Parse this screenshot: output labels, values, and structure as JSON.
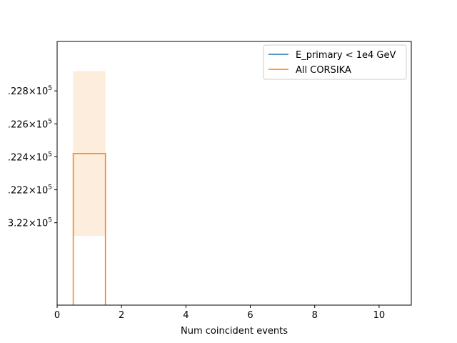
{
  "chart_data": {
    "type": "histogram",
    "xlabel": "Num coincident events",
    "ylabel": "",
    "xlim": [
      0,
      11
    ],
    "ylim": [
      322150,
      322310
    ],
    "yscale": "log",
    "grid": false,
    "legend_position": "top-right",
    "x_ticks": [
      {
        "value": 0,
        "label": "0"
      },
      {
        "value": 2,
        "label": "2"
      },
      {
        "value": 4,
        "label": "4"
      },
      {
        "value": 6,
        "label": "6"
      },
      {
        "value": 8,
        "label": "8"
      },
      {
        "value": 10,
        "label": "10"
      }
    ],
    "y_ticks": [
      {
        "value": 322200,
        "mantissa": "3.22",
        "partial": false
      },
      {
        "value": 322220,
        "mantissa": ".222",
        "partial": true
      },
      {
        "value": 322240,
        "mantissa": ".224",
        "partial": true
      },
      {
        "value": 322260,
        "mantissa": ".226",
        "partial": true
      },
      {
        "value": 322280,
        "mantissa": ".228",
        "partial": true
      }
    ],
    "y_tick_suffix": {
      "base": "10",
      "exponent": "5",
      "times": "×"
    },
    "series": [
      {
        "name": "E_primary < 1e4 GeV",
        "color": "#1f77b4",
        "bins": []
      },
      {
        "name": "All CORSIKA",
        "color": "#ff7f0e",
        "band_color": "#fdebd9",
        "bins": [
          {
            "x_low": 0.5,
            "x_high": 1.5,
            "value": 322242,
            "err_low": 322192,
            "err_high": 322292
          }
        ]
      }
    ]
  }
}
